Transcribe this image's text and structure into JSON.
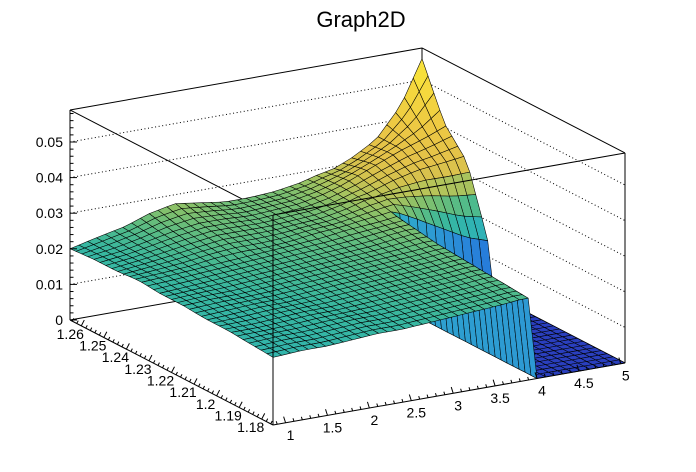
{
  "chart_data": {
    "type": "surface",
    "title": "Graph2D",
    "legend": null,
    "grid": "dotted z-gridlines on back walls",
    "x_axis": {
      "min": 0.85,
      "max": 5.05,
      "tick_values": [
        1,
        1.5,
        2,
        2.5,
        3,
        3.5,
        4,
        4.5,
        5
      ],
      "tick_labels": [
        "1",
        "1.5",
        "2",
        "2.5",
        "3",
        "3.5",
        "4",
        "4.5",
        "5"
      ],
      "minor_step": 0.1
    },
    "y_axis": {
      "min": 1.175,
      "max": 1.265,
      "tick_values": [
        1.18,
        1.19,
        1.2,
        1.21,
        1.22,
        1.23,
        1.24,
        1.25,
        1.26
      ],
      "tick_labels": [
        "1.18",
        "1.19",
        "1.2",
        "1.21",
        "1.22",
        "1.23",
        "1.24",
        "1.25",
        "1.26"
      ],
      "minor_step": 0.002
    },
    "z_axis": {
      "min": 0,
      "max": 0.059,
      "tick_values": [
        0,
        0.01,
        0.02,
        0.03,
        0.04,
        0.05
      ],
      "tick_labels": [
        "0",
        "0.01",
        "0.02",
        "0.03",
        "0.04",
        "0.05"
      ],
      "minor_step": 0.002
    },
    "surface_grid": {
      "z_scale": 0.001,
      "x_nodes": [
        0.85,
        1.2,
        1.5,
        1.8,
        2.1,
        2.4,
        2.7,
        3.0,
        3.3,
        3.6,
        3.8,
        3.95,
        4.0,
        4.2,
        4.5,
        4.8,
        5.05
      ],
      "y_nodes": [
        1.175,
        1.185,
        1.195,
        1.205,
        1.215,
        1.225,
        1.233,
        1.236,
        1.245,
        1.255,
        1.265
      ],
      "z_values": [
        [
          19,
          19.5,
          19.5,
          20,
          20.5,
          20.5,
          21,
          21.5,
          22,
          22.5,
          23,
          23,
          0,
          0,
          0,
          0,
          0
        ],
        [
          19.5,
          20,
          20,
          20.5,
          21,
          21,
          21.5,
          22,
          22.5,
          23,
          23.5,
          23.5,
          0,
          0,
          0,
          0,
          0
        ],
        [
          20,
          20,
          20.5,
          21,
          21,
          21.5,
          22,
          22.5,
          23,
          23.5,
          24,
          24,
          0,
          0,
          0,
          0,
          0
        ],
        [
          20,
          20.5,
          21,
          21,
          21.5,
          22,
          22.5,
          23,
          23.5,
          24,
          24.5,
          24.5,
          0,
          0,
          0,
          0,
          0
        ],
        [
          20.5,
          21,
          21,
          21.5,
          22,
          22.5,
          23,
          23.5,
          24,
          24.5,
          25,
          25,
          0,
          0,
          0,
          0,
          0
        ],
        [
          20.5,
          21,
          21.5,
          22,
          22.5,
          23,
          23.5,
          24,
          24.5,
          25.5,
          26,
          26,
          0,
          0,
          0,
          0,
          0
        ],
        [
          21,
          21.5,
          22,
          22.5,
          23,
          23.5,
          24,
          24.5,
          25.5,
          26,
          26.5,
          27,
          0,
          0,
          0,
          0,
          0
        ],
        [
          21,
          21.5,
          22,
          23,
          23.5,
          23.5,
          24,
          25,
          25.5,
          26.5,
          27,
          27.5,
          27.5,
          25,
          21,
          17,
          15
        ],
        [
          20.5,
          21.5,
          22.5,
          23.5,
          24.5,
          24.5,
          24.5,
          25,
          25.5,
          27,
          28.5,
          29,
          29.5,
          31,
          32.5,
          33,
          33.5
        ],
        [
          20.5,
          21.5,
          23,
          24.5,
          25.5,
          25.5,
          25,
          25.5,
          26,
          27.5,
          29,
          30.5,
          31,
          33,
          36,
          38.5,
          41
        ],
        [
          20,
          22,
          23.5,
          26,
          27.5,
          26.5,
          25.5,
          25.5,
          26,
          27.2,
          28.5,
          29.2,
          29.5,
          31.5,
          35.5,
          44,
          56
        ]
      ]
    },
    "palette": [
      [
        0,
        "#2a3fbe"
      ],
      [
        5,
        "#2062dc"
      ],
      [
        10,
        "#2b8fd8"
      ],
      [
        14,
        "#2fa9cb"
      ],
      [
        18,
        "#2fb3b4"
      ],
      [
        21,
        "#37b7a0"
      ],
      [
        23,
        "#4cba8e"
      ],
      [
        25,
        "#66bd7c"
      ],
      [
        27,
        "#8cc168"
      ],
      [
        29,
        "#b5c45a"
      ],
      [
        31,
        "#d2c24e"
      ],
      [
        34,
        "#e3c24a"
      ],
      [
        40,
        "#edc843"
      ],
      [
        48,
        "#f5d83e"
      ],
      [
        56,
        "#f9e83a"
      ]
    ],
    "mesh_line_color": "#000000",
    "frame_color": "#000000",
    "background_color": "#ffffff",
    "text_color": "#000000"
  }
}
